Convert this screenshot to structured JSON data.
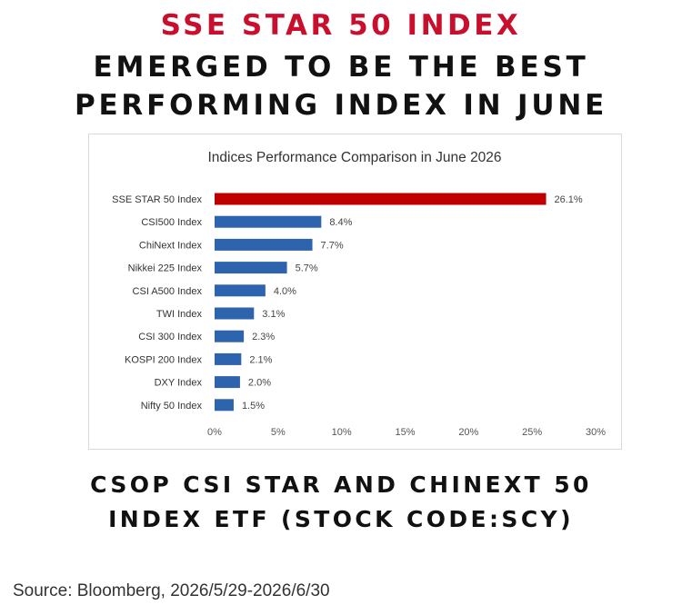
{
  "headline": {
    "line_red": "SSE STAR 50 INDEX",
    "line_1": "EMERGED TO BE THE BEST",
    "line_2": "PERFORMING INDEX IN JUNE"
  },
  "footer": {
    "line_1": "CSOP CSI STAR AND CHINEXT 50",
    "line_2": "INDEX ETF (STOCK CODE:SCY)"
  },
  "source": "Source: Bloomberg, 2026/5/29-2026/6/30",
  "colors": {
    "highlight": "#c00000",
    "bar": "#2e64ad",
    "headline_red": "#c8102e",
    "text": "#111111"
  },
  "chart_data": {
    "type": "bar",
    "orientation": "horizontal",
    "title": "Indices Performance Comparison in June 2026",
    "categories": [
      "SSE STAR 50 Index",
      "CSI500 Index",
      "ChiNext Index",
      "Nikkei 225 Index",
      "CSI A500 Index",
      "TWI Index",
      "CSI 300 Index",
      "KOSPI 200 Index",
      "DXY Index",
      "Nifty 50 Index"
    ],
    "values": [
      26.1,
      8.4,
      7.7,
      5.7,
      4.0,
      3.1,
      2.3,
      2.1,
      2.0,
      1.5
    ],
    "data_labels": [
      "26.1%",
      "8.4%",
      "7.7%",
      "5.7%",
      "4.0%",
      "3.1%",
      "2.3%",
      "2.1%",
      "2.0%",
      "1.5%"
    ],
    "highlighted_category": "SSE STAR 50 Index",
    "xlim": [
      0,
      30
    ],
    "xticks": [
      0,
      5,
      10,
      15,
      20,
      25,
      30
    ],
    "xtick_labels": [
      "0%",
      "5%",
      "10%",
      "15%",
      "20%",
      "25%",
      "30%"
    ],
    "grid": false,
    "legend": "none"
  }
}
